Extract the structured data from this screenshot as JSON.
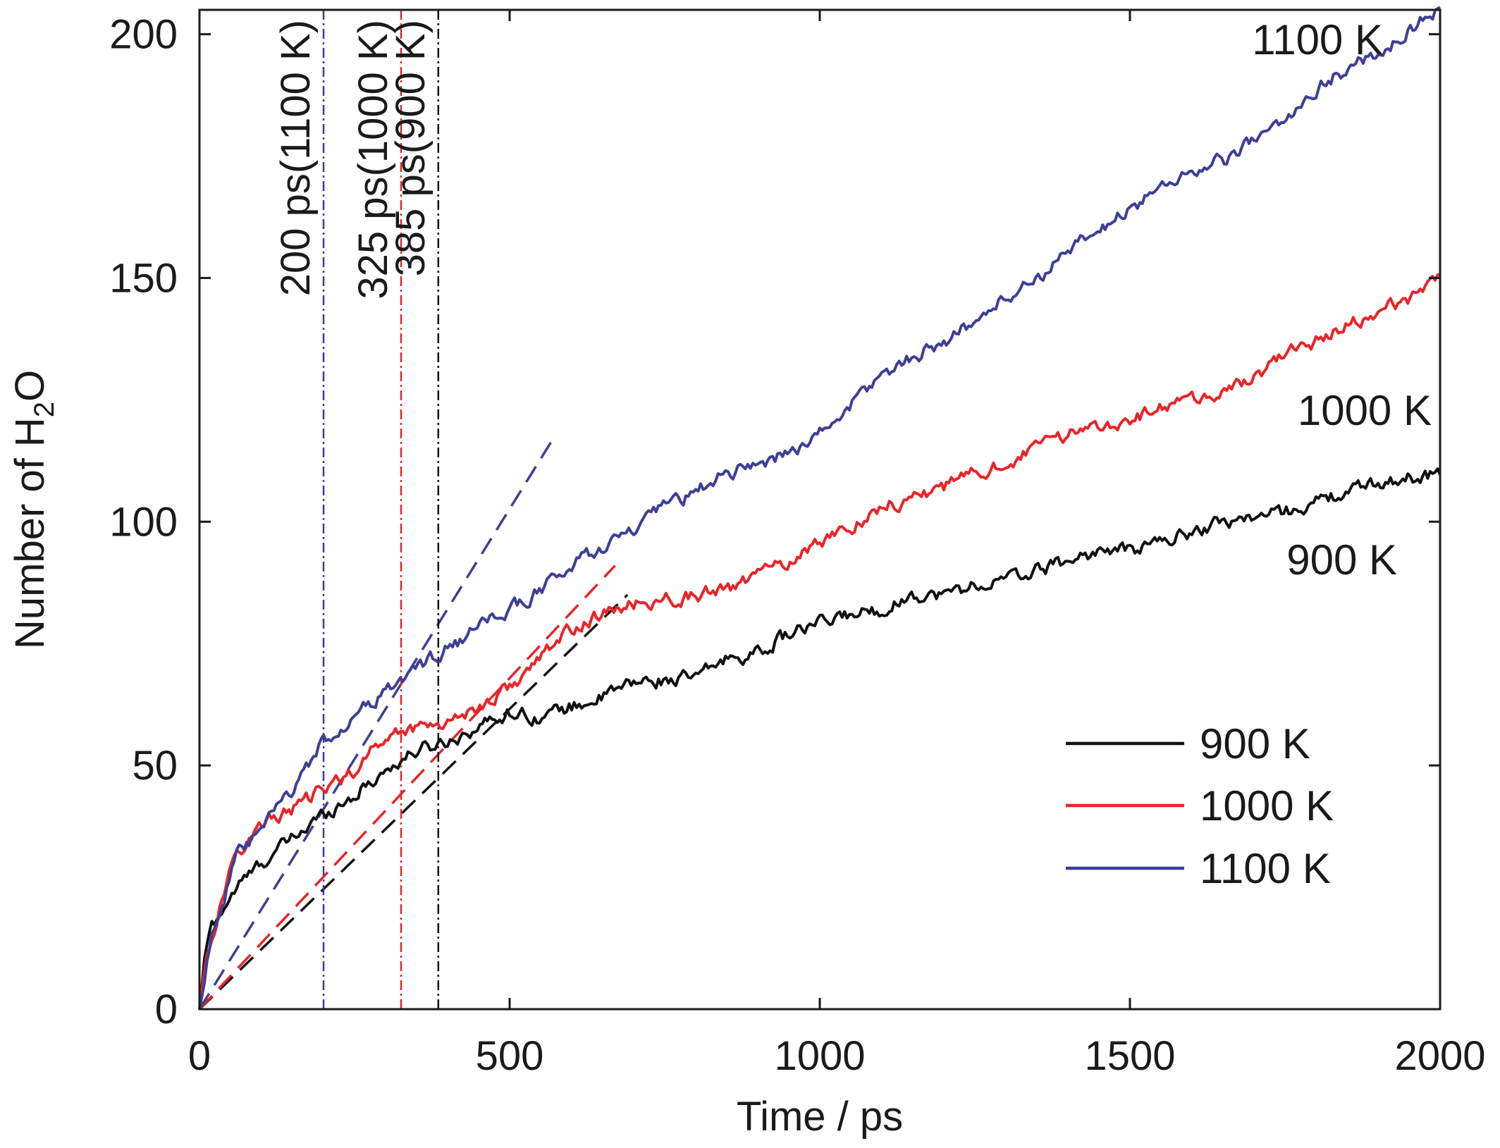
{
  "chart_data": {
    "type": "line",
    "xlabel": "Time / ps",
    "ylabel_main": "Number of H",
    "ylabel_sub": "2",
    "ylabel_tail": "O",
    "xlim": [
      0,
      2000
    ],
    "ylim": [
      0,
      205
    ],
    "xticks": [
      0,
      500,
      1000,
      1500,
      2000
    ],
    "yticks": [
      0,
      50,
      100,
      150,
      200
    ],
    "grid": false,
    "legend_position": "bottom-right",
    "series": [
      {
        "name": "900 K",
        "color": "#111111",
        "end_label": "900 K",
        "points": [
          [
            0,
            0
          ],
          [
            10,
            12
          ],
          [
            20,
            17
          ],
          [
            40,
            21
          ],
          [
            60,
            25
          ],
          [
            100,
            30
          ],
          [
            150,
            35
          ],
          [
            200,
            40
          ],
          [
            250,
            44
          ],
          [
            300,
            49
          ],
          [
            350,
            53
          ],
          [
            400,
            55
          ],
          [
            450,
            58
          ],
          [
            500,
            61
          ],
          [
            550,
            60
          ],
          [
            600,
            62
          ],
          [
            650,
            64
          ],
          [
            700,
            67
          ],
          [
            800,
            68
          ],
          [
            850,
            72
          ],
          [
            900,
            73
          ],
          [
            950,
            77
          ],
          [
            1000,
            79
          ],
          [
            1050,
            81
          ],
          [
            1100,
            82
          ],
          [
            1150,
            85
          ],
          [
            1200,
            85
          ],
          [
            1250,
            87
          ],
          [
            1300,
            88
          ],
          [
            1350,
            90
          ],
          [
            1400,
            92
          ],
          [
            1450,
            94
          ],
          [
            1500,
            94
          ],
          [
            1550,
            96
          ],
          [
            1600,
            98
          ],
          [
            1650,
            100
          ],
          [
            1700,
            101
          ],
          [
            1750,
            102
          ],
          [
            1800,
            104
          ],
          [
            1850,
            106
          ],
          [
            1900,
            108
          ],
          [
            1950,
            109
          ],
          [
            2000,
            110
          ]
        ]
      },
      {
        "name": "1000 K",
        "color": "#e8252a",
        "end_label": "1000 K",
        "points": [
          [
            0,
            0
          ],
          [
            10,
            10
          ],
          [
            20,
            15
          ],
          [
            40,
            24
          ],
          [
            60,
            32
          ],
          [
            100,
            38
          ],
          [
            150,
            41
          ],
          [
            200,
            45
          ],
          [
            250,
            49
          ],
          [
            300,
            56
          ],
          [
            350,
            58
          ],
          [
            400,
            59
          ],
          [
            450,
            62
          ],
          [
            500,
            66
          ],
          [
            550,
            72
          ],
          [
            600,
            78
          ],
          [
            650,
            81
          ],
          [
            700,
            83
          ],
          [
            800,
            85
          ],
          [
            850,
            86
          ],
          [
            900,
            89
          ],
          [
            950,
            92
          ],
          [
            1000,
            96
          ],
          [
            1050,
            99
          ],
          [
            1100,
            103
          ],
          [
            1150,
            105
          ],
          [
            1200,
            107
          ],
          [
            1250,
            110
          ],
          [
            1300,
            112
          ],
          [
            1350,
            115
          ],
          [
            1400,
            118
          ],
          [
            1450,
            120
          ],
          [
            1500,
            121
          ],
          [
            1550,
            123
          ],
          [
            1600,
            125
          ],
          [
            1650,
            127
          ],
          [
            1700,
            129
          ],
          [
            1750,
            135
          ],
          [
            1800,
            137
          ],
          [
            1850,
            140
          ],
          [
            1900,
            143
          ],
          [
            1950,
            146
          ],
          [
            2000,
            151
          ]
        ]
      },
      {
        "name": "1100 K",
        "color": "#3e3f94",
        "end_label": "1100 K",
        "points": [
          [
            0,
            0
          ],
          [
            10,
            8
          ],
          [
            20,
            16
          ],
          [
            40,
            23
          ],
          [
            60,
            31
          ],
          [
            100,
            37
          ],
          [
            150,
            45
          ],
          [
            200,
            55
          ],
          [
            250,
            60
          ],
          [
            300,
            65
          ],
          [
            350,
            70
          ],
          [
            400,
            74
          ],
          [
            450,
            78
          ],
          [
            500,
            82
          ],
          [
            550,
            86
          ],
          [
            600,
            91
          ],
          [
            650,
            95
          ],
          [
            700,
            98
          ],
          [
            750,
            103
          ],
          [
            800,
            106
          ],
          [
            850,
            110
          ],
          [
            900,
            112
          ],
          [
            950,
            114
          ],
          [
            1000,
            118
          ],
          [
            1050,
            124
          ],
          [
            1100,
            130
          ],
          [
            1150,
            134
          ],
          [
            1200,
            137
          ],
          [
            1250,
            141
          ],
          [
            1300,
            146
          ],
          [
            1350,
            150
          ],
          [
            1400,
            155
          ],
          [
            1450,
            160
          ],
          [
            1500,
            164
          ],
          [
            1550,
            169
          ],
          [
            1600,
            172
          ],
          [
            1650,
            174
          ],
          [
            1700,
            178
          ],
          [
            1750,
            182
          ],
          [
            1800,
            189
          ],
          [
            1850,
            193
          ],
          [
            1900,
            196
          ],
          [
            1950,
            201
          ],
          [
            2000,
            205
          ]
        ]
      }
    ],
    "fit_lines": [
      {
        "color": "#111111",
        "x": [
          0,
          690
        ],
        "y": [
          0,
          85
        ]
      },
      {
        "color": "#e8252a",
        "x": [
          0,
          670
        ],
        "y": [
          0,
          91
        ]
      },
      {
        "color": "#3e3f94",
        "x": [
          0,
          570
        ],
        "y": [
          0,
          117
        ]
      }
    ],
    "markers": [
      {
        "x": 200,
        "label": "200 ps(1100 K)",
        "color": "#3e3f94"
      },
      {
        "x": 325,
        "label": "325 ps(1000 K)",
        "color": "#e8252a"
      },
      {
        "x": 385,
        "label": "385 ps(900 K)",
        "color": "#111111"
      }
    ]
  }
}
